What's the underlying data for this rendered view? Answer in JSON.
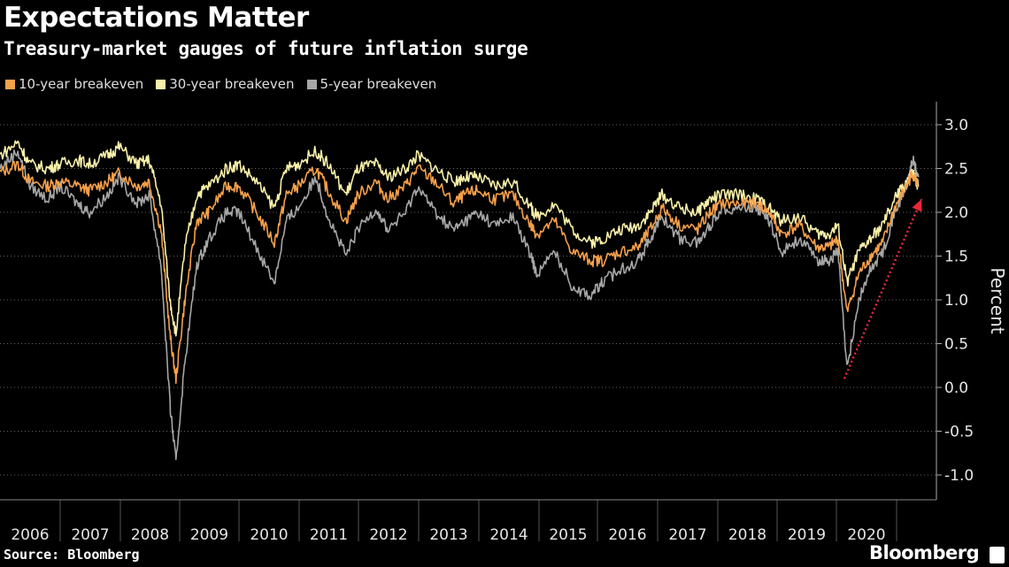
{
  "chart_data": {
    "type": "line",
    "title": "Expectations Matter",
    "subtitle": "Treasury-market gauges of future inflation surge",
    "ylabel": "Percent",
    "xlabel": "",
    "ylim": [
      -1.3,
      3.3
    ],
    "yticks": [
      "3.0",
      "2.5",
      "2.0",
      "1.5",
      "1.0",
      "0.5",
      "0.0",
      "-0.5",
      "-1.0"
    ],
    "xticks": [
      "2006",
      "2007",
      "2008",
      "2009",
      "2010",
      "2011",
      "2012",
      "2013",
      "2014",
      "2015",
      "2016",
      "2017",
      "2018",
      "2019",
      "2020"
    ],
    "grid": true,
    "legend_position": "top-left",
    "series": [
      {
        "name": "10-year breakeven",
        "color": "#f5a04a",
        "x": [
          2006.0,
          2006.3,
          2006.5,
          2006.8,
          2007.0,
          2007.3,
          2007.5,
          2007.8,
          2008.0,
          2008.3,
          2008.5,
          2008.7,
          2008.85,
          2008.95,
          2009.1,
          2009.3,
          2009.5,
          2009.8,
          2010.0,
          2010.3,
          2010.6,
          2010.8,
          2011.0,
          2011.3,
          2011.5,
          2011.8,
          2012.0,
          2012.3,
          2012.5,
          2012.8,
          2013.0,
          2013.3,
          2013.6,
          2013.8,
          2014.0,
          2014.3,
          2014.6,
          2014.9,
          2015.0,
          2015.3,
          2015.6,
          2015.9,
          2016.1,
          2016.4,
          2016.7,
          2016.9,
          2017.1,
          2017.4,
          2017.7,
          2017.9,
          2018.1,
          2018.4,
          2018.7,
          2018.9,
          2019.1,
          2019.4,
          2019.7,
          2019.9,
          2020.05,
          2020.2,
          2020.4,
          2020.6,
          2020.8,
          2021.0,
          2021.2,
          2021.3,
          2021.4
        ],
        "values": [
          2.45,
          2.55,
          2.35,
          2.3,
          2.35,
          2.3,
          2.25,
          2.35,
          2.45,
          2.3,
          2.35,
          1.8,
          0.6,
          0.1,
          1.0,
          1.9,
          2.0,
          2.3,
          2.3,
          2.0,
          1.65,
          2.2,
          2.3,
          2.5,
          2.25,
          1.9,
          2.2,
          2.35,
          2.15,
          2.3,
          2.5,
          2.35,
          2.1,
          2.2,
          2.25,
          2.15,
          2.2,
          1.85,
          1.75,
          1.9,
          1.55,
          1.45,
          1.45,
          1.55,
          1.6,
          1.8,
          2.05,
          1.85,
          1.8,
          2.0,
          2.1,
          2.1,
          2.1,
          2.0,
          1.75,
          1.85,
          1.6,
          1.6,
          1.7,
          0.85,
          1.3,
          1.5,
          1.65,
          2.05,
          2.3,
          2.45,
          2.3
        ]
      },
      {
        "name": "30-year breakeven",
        "color": "#f8f0a8",
        "x": [
          2006.0,
          2006.3,
          2006.5,
          2006.8,
          2007.0,
          2007.3,
          2007.5,
          2007.8,
          2008.0,
          2008.3,
          2008.5,
          2008.7,
          2008.85,
          2008.95,
          2009.1,
          2009.3,
          2009.5,
          2009.8,
          2010.0,
          2010.3,
          2010.6,
          2010.8,
          2011.0,
          2011.3,
          2011.5,
          2011.8,
          2012.0,
          2012.3,
          2012.5,
          2012.8,
          2013.0,
          2013.3,
          2013.6,
          2013.8,
          2014.0,
          2014.3,
          2014.6,
          2014.9,
          2015.0,
          2015.3,
          2015.6,
          2015.9,
          2016.1,
          2016.4,
          2016.7,
          2016.9,
          2017.1,
          2017.4,
          2017.7,
          2017.9,
          2018.1,
          2018.4,
          2018.7,
          2018.9,
          2019.1,
          2019.4,
          2019.7,
          2019.9,
          2020.05,
          2020.2,
          2020.4,
          2020.6,
          2020.8,
          2021.0,
          2021.2,
          2021.3,
          2021.4
        ],
        "values": [
          2.65,
          2.8,
          2.55,
          2.5,
          2.55,
          2.6,
          2.55,
          2.65,
          2.75,
          2.55,
          2.6,
          2.1,
          1.0,
          0.6,
          1.6,
          2.2,
          2.3,
          2.5,
          2.55,
          2.35,
          2.05,
          2.5,
          2.55,
          2.7,
          2.55,
          2.2,
          2.5,
          2.55,
          2.4,
          2.5,
          2.65,
          2.5,
          2.35,
          2.4,
          2.4,
          2.3,
          2.35,
          2.05,
          1.95,
          2.1,
          1.8,
          1.65,
          1.7,
          1.8,
          1.85,
          2.0,
          2.2,
          2.05,
          2.0,
          2.15,
          2.2,
          2.2,
          2.15,
          2.05,
          1.9,
          1.95,
          1.75,
          1.75,
          1.85,
          1.2,
          1.55,
          1.7,
          1.85,
          2.15,
          2.35,
          2.45,
          2.3
        ]
      },
      {
        "name": "5-year breakeven",
        "color": "#a6a6a6",
        "x": [
          2006.0,
          2006.3,
          2006.5,
          2006.8,
          2007.0,
          2007.3,
          2007.5,
          2007.8,
          2008.0,
          2008.3,
          2008.5,
          2008.7,
          2008.85,
          2008.95,
          2009.1,
          2009.3,
          2009.5,
          2009.8,
          2010.0,
          2010.3,
          2010.6,
          2010.8,
          2011.0,
          2011.3,
          2011.5,
          2011.8,
          2012.0,
          2012.3,
          2012.5,
          2012.8,
          2013.0,
          2013.3,
          2013.6,
          2013.8,
          2014.0,
          2014.3,
          2014.6,
          2014.9,
          2015.0,
          2015.3,
          2015.6,
          2015.9,
          2016.1,
          2016.4,
          2016.7,
          2016.9,
          2017.1,
          2017.4,
          2017.7,
          2017.9,
          2018.1,
          2018.4,
          2018.7,
          2018.9,
          2019.1,
          2019.4,
          2019.7,
          2019.9,
          2020.05,
          2020.2,
          2020.4,
          2020.6,
          2020.8,
          2021.0,
          2021.2,
          2021.3,
          2021.4
        ],
        "values": [
          2.5,
          2.7,
          2.3,
          2.15,
          2.3,
          2.1,
          2.0,
          2.2,
          2.4,
          2.1,
          2.2,
          1.4,
          -0.2,
          -0.85,
          0.3,
          1.4,
          1.7,
          2.0,
          2.0,
          1.6,
          1.2,
          1.9,
          2.05,
          2.4,
          1.95,
          1.5,
          1.8,
          2.05,
          1.8,
          2.0,
          2.3,
          2.0,
          1.8,
          1.9,
          2.0,
          1.85,
          1.95,
          1.5,
          1.3,
          1.55,
          1.15,
          1.05,
          1.2,
          1.35,
          1.45,
          1.7,
          1.95,
          1.7,
          1.65,
          1.85,
          2.05,
          2.05,
          2.05,
          1.9,
          1.55,
          1.7,
          1.45,
          1.45,
          1.55,
          0.2,
          1.0,
          1.35,
          1.55,
          2.0,
          2.3,
          2.6,
          2.4
        ]
      }
    ],
    "annotation": {
      "type": "arrow",
      "from": [
        2020.2,
        0.1
      ],
      "to": [
        2021.45,
        2.15
      ],
      "color": "#e8283c",
      "style": "dotted"
    }
  },
  "source_text": "Source: Bloomberg",
  "logo_text": "Bloomberg"
}
